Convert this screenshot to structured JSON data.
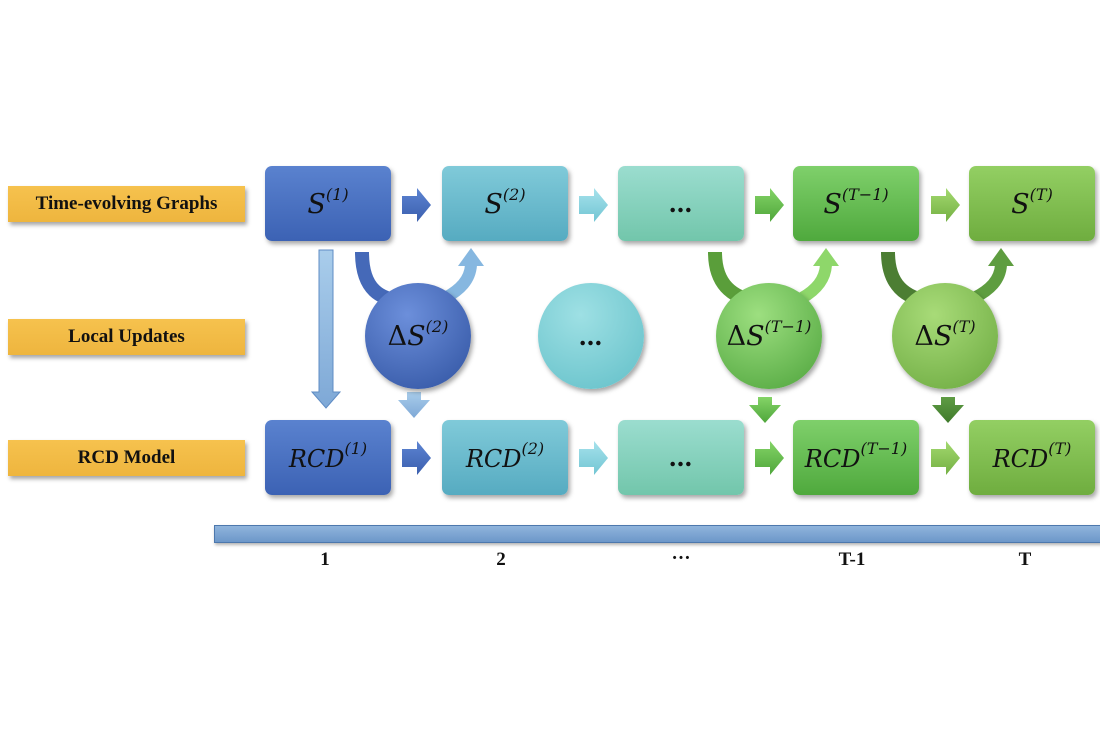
{
  "rows": {
    "graphs": "Time-evolving Graphs",
    "updates": "Local Updates",
    "model": "RCD Model"
  },
  "graph_nodes": [
    {
      "base": "S",
      "sup": "(1)"
    },
    {
      "base": "S",
      "sup": "(2)"
    },
    {
      "base": "…",
      "sup": ""
    },
    {
      "base": "S",
      "sup": "(T−1)"
    },
    {
      "base": "S",
      "sup": "(T)"
    }
  ],
  "update_nodes": [
    {
      "prefix": "Δ",
      "base": "S",
      "sup": "(2)"
    },
    {
      "prefix": "",
      "base": "…",
      "sup": ""
    },
    {
      "prefix": "Δ",
      "base": "S",
      "sup": "(T−1)"
    },
    {
      "prefix": "Δ",
      "base": "S",
      "sup": "(T)"
    }
  ],
  "model_nodes": [
    {
      "base": "RCD",
      "sup": "(1)"
    },
    {
      "base": "RCD",
      "sup": "(2)"
    },
    {
      "base": "…",
      "sup": ""
    },
    {
      "base": "RCD",
      "sup": "(T−1)"
    },
    {
      "base": "RCD",
      "sup": "(T)"
    }
  ],
  "timeline": {
    "ticks": [
      "1",
      "2",
      "…",
      "T-1",
      "T"
    ]
  },
  "colors": {
    "label_fill": "#f2bb46",
    "step_1": "#4a72c3",
    "step_2": "#6bbcd0",
    "step_gap": "#86d2bd",
    "step_T_minus_1": "#62bb4f",
    "step_T": "#80be50",
    "timeline": "#7ea6d4"
  }
}
